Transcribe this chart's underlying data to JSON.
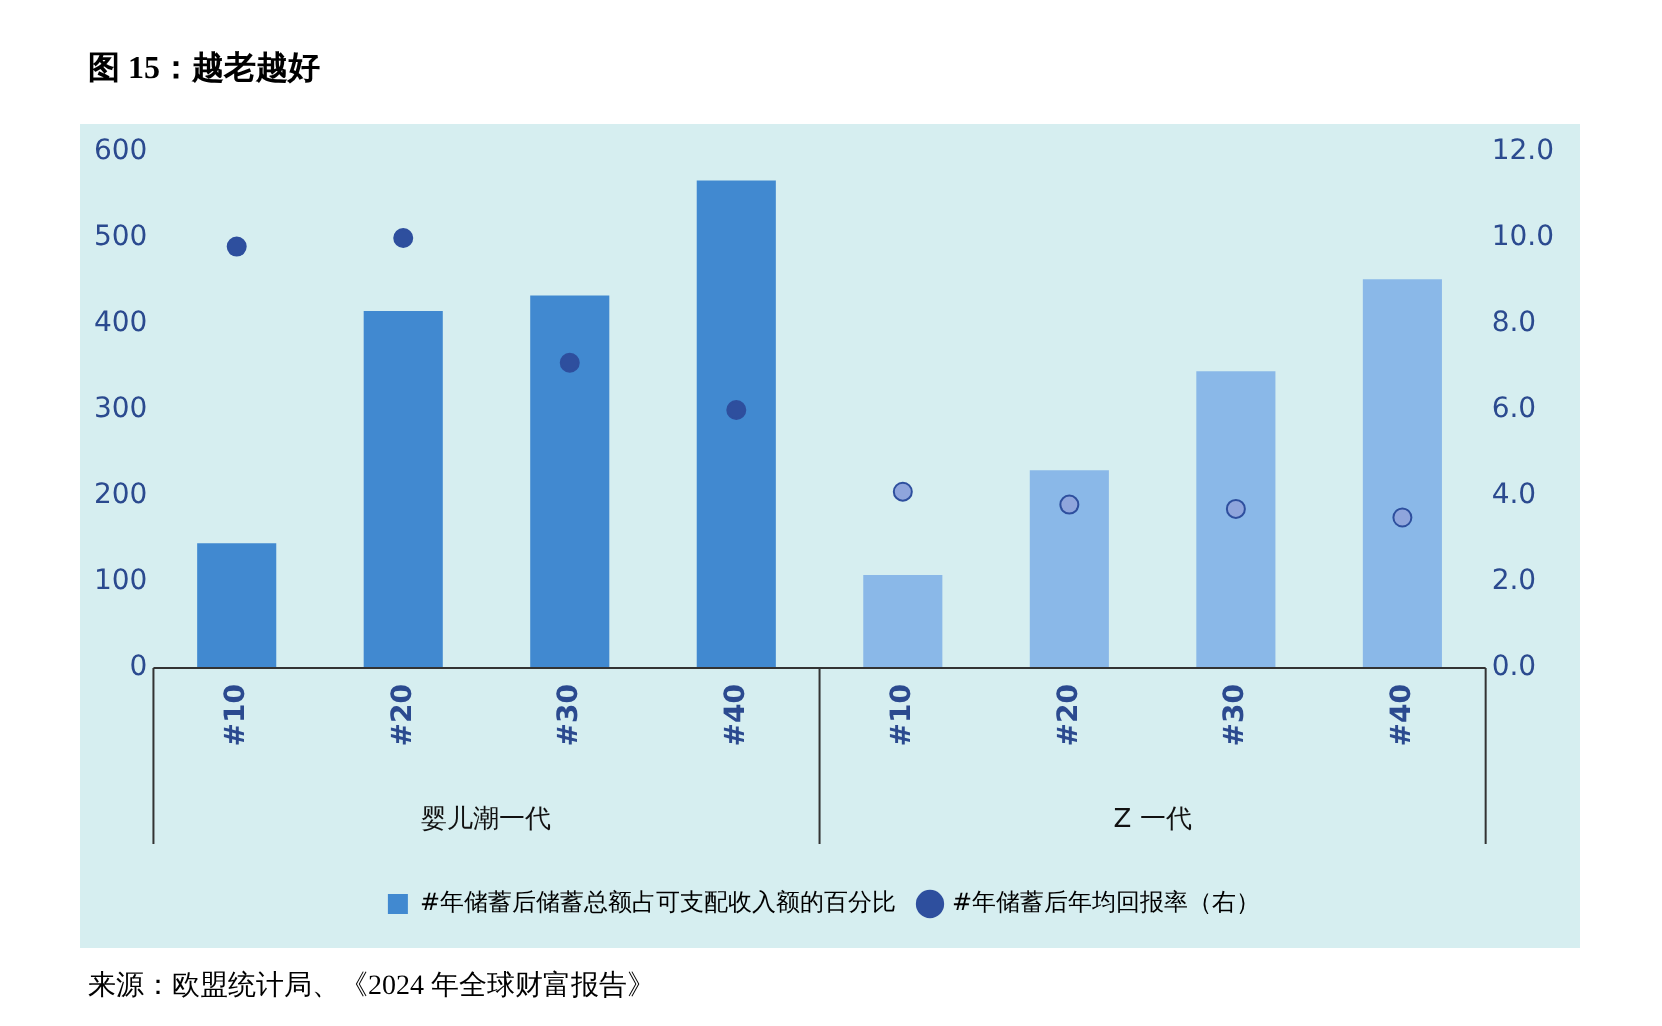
{
  "chart_data": {
    "type": "bar",
    "title": "图 15：越老越好",
    "categories": [
      "#10",
      "#20",
      "#30",
      "#40",
      "#10",
      "#20",
      "#30",
      "#40"
    ],
    "series": [
      {
        "name": "#年储蓄后储蓄总额占可支配收入额的百分比",
        "color": "#4189d0",
        "colors": [
          "#4189d0",
          "#4189d0",
          "#4189d0",
          "#4189d0",
          "#8ab8e8",
          "#8ab8e8",
          "#8ab8e8",
          "#8ab8e8"
        ],
        "values": [
          145,
          415,
          433,
          567,
          108,
          230,
          345,
          452
        ]
      },
      {
        "name": "#年储蓄后年均回报率（右）",
        "type": "scatter",
        "axis": "y2",
        "color": "#2e4f9e",
        "colors": [
          "#2e4f9e",
          "#2e4f9e",
          "#2e4f9e",
          "#2e4f9e",
          "#8fa5dc",
          "#8fa5dc",
          "#8fa5dc",
          "#8fa5dc"
        ],
        "values": [
          9.8,
          10.0,
          7.1,
          6.0,
          4.1,
          3.8,
          3.7,
          3.5
        ]
      }
    ],
    "ylim": [
      0,
      600
    ],
    "yticks": [
      0,
      100,
      200,
      300,
      400,
      500,
      600
    ],
    "y2lim": [
      0,
      12
    ],
    "y2ticks": [
      {
        "value": 0,
        "label": "0.0"
      },
      {
        "value": 2,
        "label": "2.0"
      },
      {
        "value": 4,
        "label": "4.0"
      },
      {
        "value": 6,
        "label": "6.0"
      },
      {
        "value": 8,
        "label": "8.0"
      },
      {
        "value": 10,
        "label": "10.0"
      },
      {
        "value": 12,
        "label": "12.0"
      }
    ],
    "grid": false,
    "legend": "bottom",
    "marker": "circle",
    "annotations": [
      "婴儿潮一代",
      "Z 一代",
      "来源：欧盟统计局、《2024 年全球财富报告》"
    ]
  }
}
